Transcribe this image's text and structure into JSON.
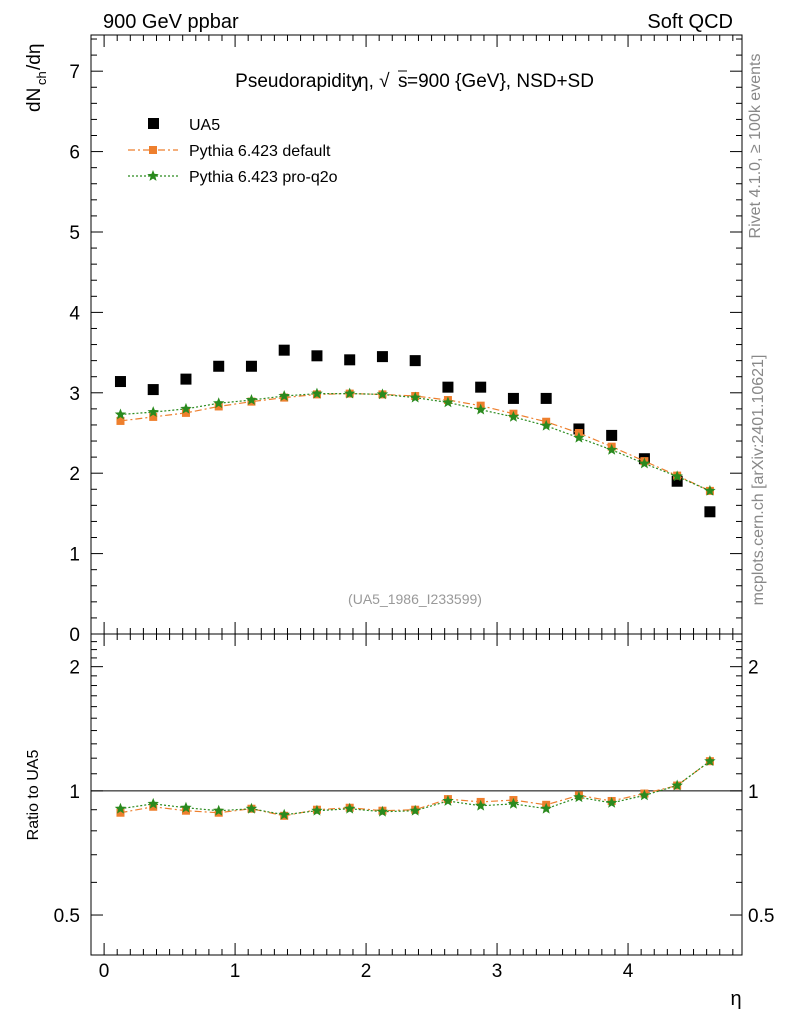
{
  "header": {
    "left_label": "900 GeV ppbar",
    "right_label": "Soft QCD"
  },
  "side_labels": {
    "rivet": "Rivet 4.1.0, ≥ 100k events",
    "mcplots": "mcplots.cern.ch [arXiv:2401.10621]"
  },
  "chart_data": [
    {
      "type": "scatter",
      "panel": "main",
      "title": "Pseudorapidity η, √s=900 {GeV}, NSD+SD",
      "title_parts": {
        "lead": "Pseudorapidity",
        "eta": "η, √",
        "s": "s",
        "rest": "=900 {GeV}, NSD+SD"
      },
      "ylabel": "dN_ch/dη",
      "ylabel_parts": {
        "main": "dN",
        "sub": "ch",
        "tail": "/dη"
      },
      "xlabel": "η",
      "analysis_id": "(UA5_1986_I233599)",
      "xlim": [
        -0.1,
        4.87
      ],
      "ylim": [
        0,
        7.45
      ],
      "yticks": [
        0,
        1,
        2,
        3,
        4,
        5,
        6,
        7
      ],
      "ytick_labels": [
        "0",
        "1",
        "2",
        "3",
        "4",
        "5",
        "6",
        "7"
      ],
      "x": [
        0.125,
        0.375,
        0.625,
        0.875,
        1.125,
        1.375,
        1.625,
        1.875,
        2.125,
        2.375,
        2.625,
        2.875,
        3.125,
        3.375,
        3.625,
        3.875,
        4.125,
        4.375,
        4.625
      ],
      "series": [
        {
          "name": "UA5",
          "marker": "square",
          "color": "#000000",
          "values": [
            3.14,
            3.04,
            3.17,
            3.33,
            3.33,
            3.53,
            3.46,
            3.41,
            3.45,
            3.4,
            3.07,
            3.07,
            2.93,
            2.93,
            2.55,
            2.47,
            2.18,
            1.9,
            1.52
          ]
        },
        {
          "name": "Pythia 6.423 default",
          "marker": "dot-square",
          "color": "#ee7f2d",
          "line": "dashdot",
          "values": [
            2.65,
            2.7,
            2.75,
            2.83,
            2.89,
            2.94,
            2.98,
            2.99,
            2.98,
            2.96,
            2.91,
            2.84,
            2.74,
            2.64,
            2.5,
            2.33,
            2.15,
            1.97,
            1.78
          ]
        },
        {
          "name": "Pythia 6.423 pro-q2o",
          "marker": "star",
          "color": "#2a8a1e",
          "line": "dotted",
          "values": [
            2.73,
            2.76,
            2.8,
            2.87,
            2.91,
            2.96,
            2.99,
            2.99,
            2.98,
            2.94,
            2.88,
            2.79,
            2.7,
            2.59,
            2.44,
            2.29,
            2.12,
            1.96,
            1.78
          ]
        }
      ]
    },
    {
      "type": "scatter",
      "panel": "ratio",
      "ylabel": "Ratio to UA5",
      "xlabel": "η",
      "ylim": [
        0.4,
        2.4
      ],
      "yscale": "log",
      "reference_line": 1.0,
      "yticks": [
        0.5,
        1,
        2
      ],
      "ytick_labels": [
        "0.5",
        "1",
        "2"
      ],
      "xticks": [
        0,
        1,
        2,
        3,
        4
      ],
      "xtick_labels": [
        "0",
        "1",
        "2",
        "3",
        "4"
      ],
      "x": [
        0.125,
        0.375,
        0.625,
        0.875,
        1.125,
        1.375,
        1.625,
        1.875,
        2.125,
        2.375,
        2.625,
        2.875,
        3.125,
        3.375,
        3.625,
        3.875,
        4.125,
        4.375,
        4.625
      ],
      "series": [
        {
          "name": "Pythia 6.423 default",
          "marker": "dot-square",
          "color": "#ee7f2d",
          "line": "dashdot",
          "values": [
            0.885,
            0.915,
            0.895,
            0.885,
            0.905,
            0.87,
            0.9,
            0.91,
            0.895,
            0.9,
            0.955,
            0.94,
            0.95,
            0.925,
            0.975,
            0.945,
            0.985,
            1.03,
            1.18
          ]
        },
        {
          "name": "Pythia 6.423 pro-q2o",
          "marker": "star",
          "color": "#2a8a1e",
          "line": "dotted",
          "values": [
            0.905,
            0.93,
            0.91,
            0.895,
            0.905,
            0.875,
            0.895,
            0.905,
            0.89,
            0.895,
            0.945,
            0.92,
            0.93,
            0.905,
            0.965,
            0.935,
            0.975,
            1.03,
            1.18
          ]
        }
      ]
    }
  ]
}
